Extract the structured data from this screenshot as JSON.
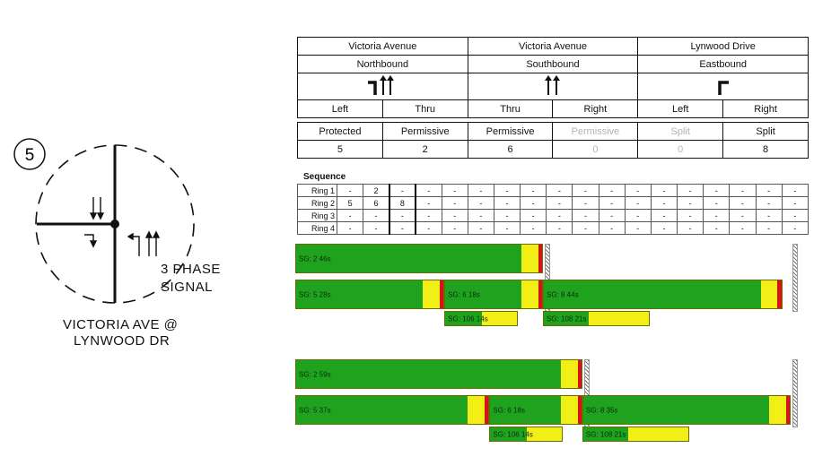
{
  "intersection": {
    "number": "5",
    "phase_label_1": "3 PHASE",
    "phase_label_2": "SIGNAL",
    "name_line_1": "VICTORIA AVE @",
    "name_line_2": "LYNWOOD DR"
  },
  "movement_table": {
    "approaches": [
      {
        "street": "Victoria Avenue",
        "direction": "Northbound"
      },
      {
        "street": "Victoria Avenue",
        "direction": "Southbound"
      },
      {
        "street": "Lynwood Drive",
        "direction": "Eastbound"
      }
    ],
    "movements": [
      {
        "name": "Left",
        "control": "Protected",
        "phase": "5",
        "dim": false
      },
      {
        "name": "Thru",
        "control": "Permissive",
        "phase": "2",
        "dim": false
      },
      {
        "name": "Thru",
        "control": "Permissive",
        "phase": "6",
        "dim": false
      },
      {
        "name": "Right",
        "control": "Permissive",
        "phase": "0",
        "dim": true
      },
      {
        "name": "Left",
        "control": "Split",
        "phase": "0",
        "dim": true
      },
      {
        "name": "Right",
        "control": "Split",
        "phase": "8",
        "dim": false
      }
    ]
  },
  "sequence": {
    "title": "Sequence",
    "rings": [
      {
        "label": "Ring 1",
        "cells": [
          "-",
          "2",
          "-",
          "-",
          "-",
          "-",
          "-",
          "-",
          "-",
          "-",
          "-",
          "-",
          "-",
          "-",
          "-",
          "-",
          "-",
          "-"
        ]
      },
      {
        "label": "Ring 2",
        "cells": [
          "5",
          "6",
          "8",
          "-",
          "-",
          "-",
          "-",
          "-",
          "-",
          "-",
          "-",
          "-",
          "-",
          "-",
          "-",
          "-",
          "-",
          "-"
        ]
      },
      {
        "label": "Ring 3",
        "cells": [
          "-",
          "-",
          "-",
          "-",
          "-",
          "-",
          "-",
          "-",
          "-",
          "-",
          "-",
          "-",
          "-",
          "-",
          "-",
          "-",
          "-",
          "-"
        ]
      },
      {
        "label": "Ring 4",
        "cells": [
          "-",
          "-",
          "-",
          "-",
          "-",
          "-",
          "-",
          "-",
          "-",
          "-",
          "-",
          "-",
          "-",
          "-",
          "-",
          "-",
          "-",
          "-"
        ]
      }
    ]
  },
  "timing_panels": [
    {
      "cycle_s": 88,
      "barriers_s": [
        44,
        88
      ],
      "bars": [
        {
          "label": "SG: 2  46s",
          "row": 0,
          "start_s": 0,
          "green_s": 40,
          "yellow_s": 3,
          "red_s": 1
        },
        {
          "label": "SG: 5  28s",
          "row": 1,
          "start_s": 0,
          "green_s": 22.5,
          "yellow_s": 3,
          "red_s": 1
        },
        {
          "label": "SG: 6  18s",
          "row": 1,
          "start_s": 26.5,
          "green_s": 13.5,
          "yellow_s": 3,
          "red_s": 1
        },
        {
          "label": "SG: 8  44s",
          "row": 1,
          "start_s": 44,
          "green_s": 38.5,
          "yellow_s": 3,
          "red_s": 1
        },
        {
          "label": "SG: 106  14s",
          "row": 2,
          "start_s": 26.5,
          "green_s": 6.5,
          "yellow_s": 6.5,
          "red_s": 0
        },
        {
          "label": "SG: 108  21s",
          "row": 2,
          "start_s": 44,
          "green_s": 8,
          "yellow_s": 11,
          "red_s": 0
        }
      ]
    },
    {
      "cycle_s": 88,
      "barriers_s": [
        51,
        88
      ],
      "bars": [
        {
          "label": "SG: 2  59s",
          "row": 0,
          "start_s": 0,
          "green_s": 47,
          "yellow_s": 3,
          "red_s": 1
        },
        {
          "label": "SG: 5  37s",
          "row": 1,
          "start_s": 0,
          "green_s": 30.5,
          "yellow_s": 3,
          "red_s": 1
        },
        {
          "label": "SG: 6  18s",
          "row": 1,
          "start_s": 34.5,
          "green_s": 12.5,
          "yellow_s": 3,
          "red_s": 1
        },
        {
          "label": "SG: 8  35s",
          "row": 1,
          "start_s": 51,
          "green_s": 33,
          "yellow_s": 3,
          "red_s": 1
        },
        {
          "label": "SG: 106  14s",
          "row": 2,
          "start_s": 34.5,
          "green_s": 6.5,
          "yellow_s": 6.5,
          "red_s": 0
        },
        {
          "label": "SG: 108  21s",
          "row": 2,
          "start_s": 51,
          "green_s": 8,
          "yellow_s": 11,
          "red_s": 0
        }
      ]
    }
  ]
}
